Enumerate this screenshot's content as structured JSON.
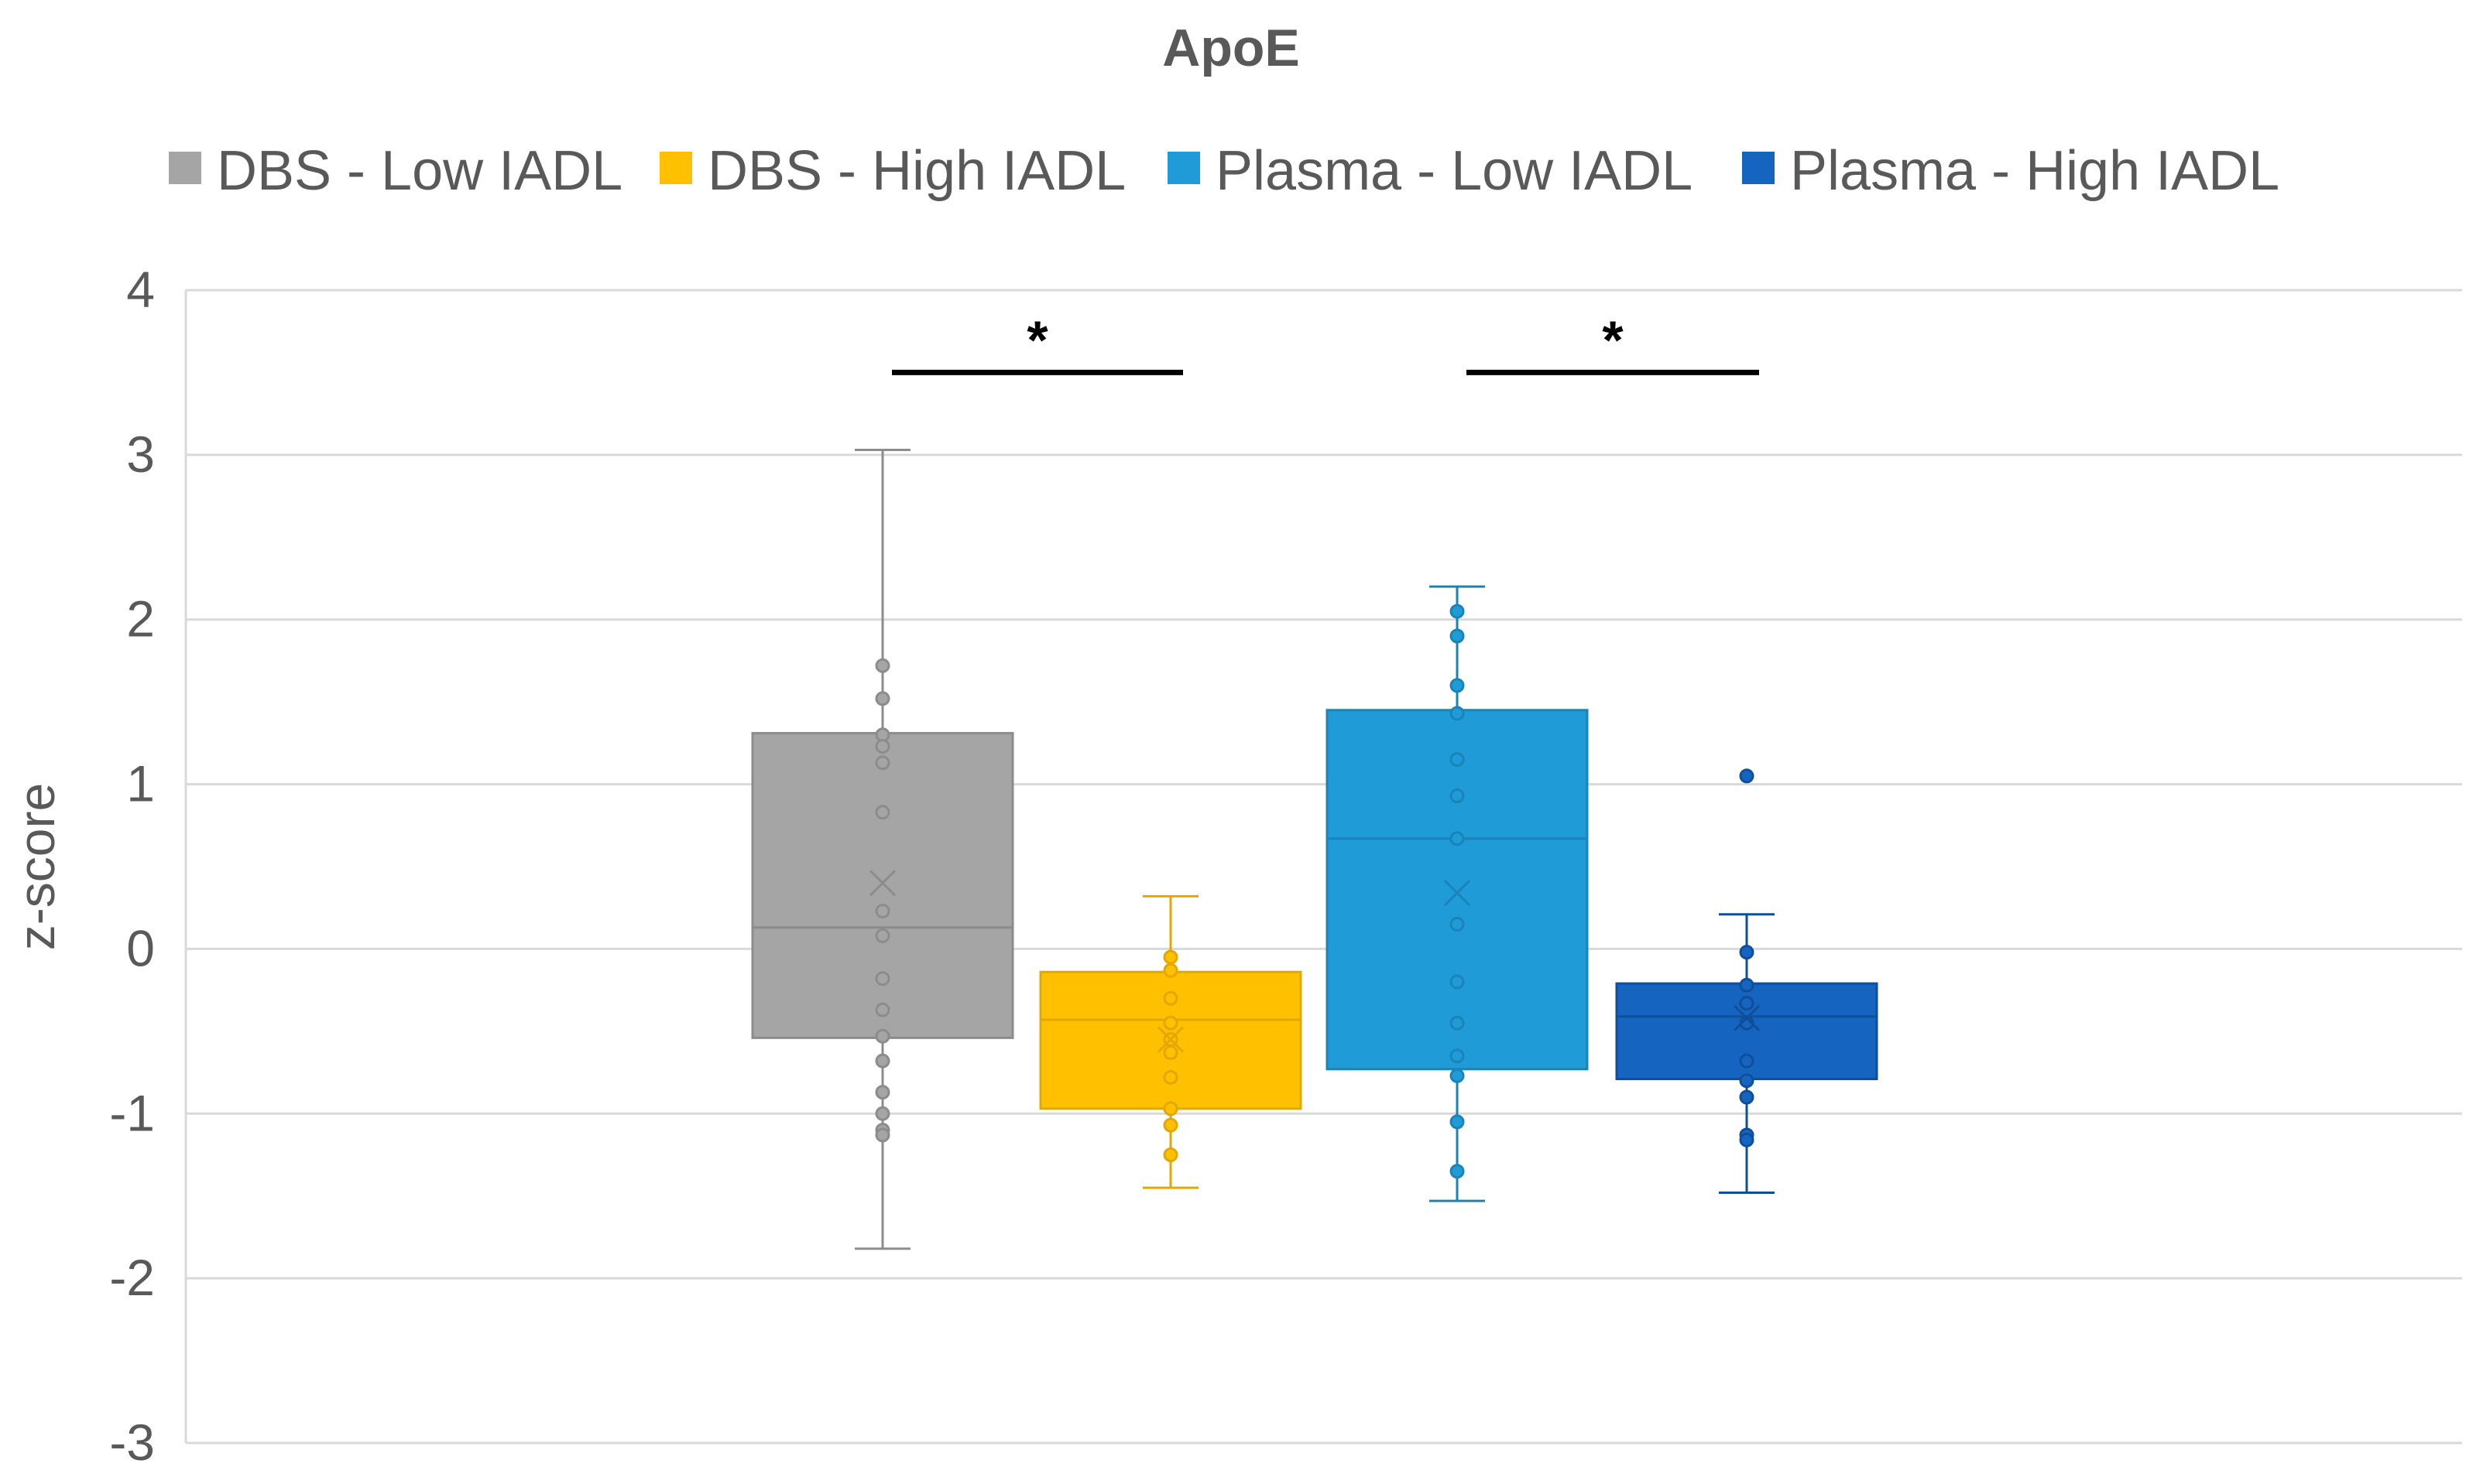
{
  "chart_data": {
    "type": "box",
    "title": "ApoE",
    "xlabel": "",
    "ylabel": "z-score",
    "ylim": [
      -3,
      4
    ],
    "yticks": [
      4,
      3,
      2,
      1,
      0,
      -1,
      -2,
      -3
    ],
    "ytick_labels": [
      "4",
      "3",
      "2",
      "1",
      "0",
      "-1",
      "-2",
      "-3"
    ],
    "grid": true,
    "legend_position": "top",
    "series": [
      {
        "name": "DBS - Low IADL",
        "color": "#A5A5A5",
        "edge": "#8C8C8C",
        "min": -1.82,
        "q1": -0.54,
        "median": 0.13,
        "q3": 1.31,
        "max": 3.03,
        "mean": 0.4,
        "points": [
          1.72,
          1.52,
          1.3,
          1.23,
          1.13,
          0.83,
          0.23,
          0.08,
          -0.18,
          -0.37,
          -0.53,
          -0.68,
          -0.87,
          -1.0,
          -1.1,
          -1.13
        ]
      },
      {
        "name": "DBS - High IADL",
        "color": "#FFC000",
        "edge": "#E3A800",
        "min": -1.45,
        "q1": -0.97,
        "median": -0.43,
        "q3": -0.14,
        "max": 0.32,
        "mean": -0.55,
        "points": [
          -0.05,
          -0.13,
          -0.3,
          -0.45,
          -0.55,
          -0.63,
          -0.78,
          -0.97,
          -1.07,
          -1.25
        ]
      },
      {
        "name": "Plasma - Low IADL",
        "color": "#1F9BD7",
        "edge": "#1A84B8",
        "min": -1.53,
        "q1": -0.73,
        "median": 0.67,
        "q3": 1.45,
        "max": 2.2,
        "mean": 0.34,
        "points": [
          2.05,
          1.9,
          1.6,
          1.43,
          1.15,
          0.93,
          0.67,
          0.15,
          -0.2,
          -0.45,
          -0.65,
          -0.77,
          -1.05,
          -1.35
        ]
      },
      {
        "name": "Plasma - High IADL",
        "color": "#1565C0",
        "edge": "#0F4F99",
        "min": -1.48,
        "q1": -0.79,
        "median": -0.41,
        "q3": -0.21,
        "max": 0.21,
        "mean": -0.42,
        "points": [
          1.05,
          -0.02,
          -0.22,
          -0.33,
          -0.45,
          -0.68,
          -0.8,
          -0.9,
          -1.13,
          -1.16
        ]
      }
    ],
    "annotations": [
      {
        "label": "*",
        "between": [
          "DBS - Low IADL",
          "DBS - High IADL"
        ],
        "y": 3.5
      },
      {
        "label": "*",
        "between": [
          "Plasma - Low IADL",
          "Plasma - High IADL"
        ],
        "y": 3.5
      }
    ]
  }
}
